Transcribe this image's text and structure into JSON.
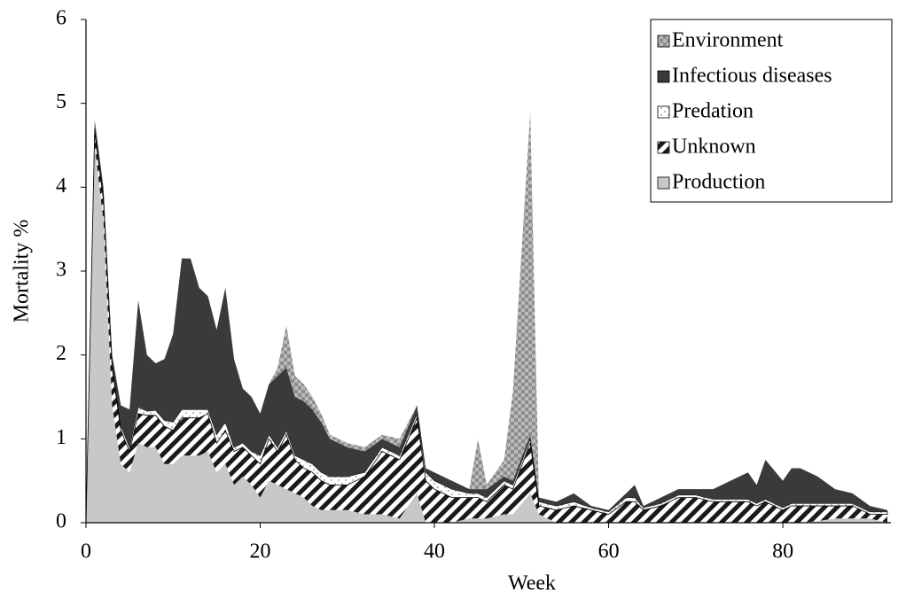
{
  "chart_data": {
    "type": "stacked-area",
    "x_label": "Week",
    "y_label": "Mortality %",
    "x": [
      0,
      1,
      2,
      3,
      4,
      5,
      6,
      7,
      8,
      9,
      10,
      11,
      12,
      13,
      14,
      15,
      16,
      17,
      18,
      19,
      20,
      21,
      22,
      23,
      24,
      25,
      26,
      27,
      28,
      30,
      32,
      34,
      36,
      38,
      39,
      40,
      42,
      44,
      45,
      46,
      48,
      49,
      51,
      52,
      54,
      56,
      58,
      60,
      62,
      63,
      64,
      66,
      68,
      70,
      72,
      74,
      76,
      77,
      78,
      80,
      81,
      82,
      84,
      86,
      88,
      90,
      92
    ],
    "series": [
      {
        "name": "Production",
        "color": "#c8c8c8",
        "values": [
          0,
          4.5,
          3.6,
          1.4,
          0.7,
          0.6,
          0.95,
          0.9,
          0.9,
          0.7,
          0.7,
          0.8,
          0.8,
          0.8,
          0.85,
          0.6,
          0.7,
          0.45,
          0.55,
          0.45,
          0.3,
          0.5,
          0.45,
          0.4,
          0.35,
          0.3,
          0.2,
          0.15,
          0.15,
          0.15,
          0.1,
          0.1,
          0.05,
          0.35,
          0,
          0,
          0,
          0.05,
          0.05,
          0.05,
          0.1,
          0.1,
          0.35,
          0.1,
          0,
          0,
          0,
          0,
          0,
          0,
          0,
          0,
          0,
          0,
          0,
          0,
          0,
          0,
          0,
          0,
          0,
          0,
          0.02,
          0.05,
          0.05,
          0.05,
          0
        ]
      },
      {
        "name": "Unknown",
        "color": "#1a1a1a",
        "values": [
          0,
          0.15,
          0.25,
          0.45,
          0.4,
          0.25,
          0.35,
          0.38,
          0.38,
          0.45,
          0.4,
          0.45,
          0.45,
          0.45,
          0.45,
          0.35,
          0.4,
          0.4,
          0.35,
          0.35,
          0.4,
          0.5,
          0.4,
          0.65,
          0.4,
          0.35,
          0.4,
          0.35,
          0.3,
          0.3,
          0.45,
          0.75,
          0.7,
          0.9,
          0.5,
          0.4,
          0.3,
          0.25,
          0.25,
          0.2,
          0.35,
          0.3,
          0.6,
          0.1,
          0.15,
          0.2,
          0.15,
          0.1,
          0.25,
          0.25,
          0.15,
          0.2,
          0.3,
          0.3,
          0.25,
          0.25,
          0.25,
          0.2,
          0.25,
          0.15,
          0.2,
          0.2,
          0.18,
          0.15,
          0.15,
          0.05,
          0.1
        ]
      },
      {
        "name": "Predation",
        "color": "#ffffff",
        "values": [
          0,
          0.05,
          0.05,
          0.05,
          0.05,
          0.05,
          0.08,
          0.05,
          0.06,
          0.07,
          0.1,
          0.1,
          0.1,
          0.1,
          0.05,
          0.1,
          0.1,
          0.05,
          0.05,
          0.05,
          0.1,
          0.05,
          0.05,
          0.05,
          0.05,
          0.1,
          0.1,
          0.1,
          0.1,
          0.1,
          0.05,
          0.05,
          0.05,
          0.05,
          0.1,
          0.1,
          0.1,
          0.05,
          0.05,
          0.05,
          0.05,
          0.05,
          0.05,
          0.05,
          0.05,
          0.05,
          0.03,
          0.03,
          0.05,
          0.05,
          0.03,
          0.03,
          0.03,
          0.03,
          0.03,
          0.03,
          0.03,
          0.03,
          0.03,
          0.03,
          0.03,
          0.03,
          0.03,
          0.03,
          0.03,
          0.03,
          0.03
        ]
      },
      {
        "name": "Infectious diseases",
        "color": "#3a3a3a",
        "values": [
          0,
          0.1,
          0.1,
          0.1,
          0.25,
          0.45,
          1.27,
          0.67,
          0.56,
          0.73,
          1.05,
          1.8,
          1.8,
          1.45,
          1.35,
          1.25,
          1.6,
          1.05,
          0.65,
          0.65,
          0.5,
          0.6,
          0.85,
          0.75,
          0.7,
          0.7,
          0.65,
          0.6,
          0.45,
          0.35,
          0.25,
          0.1,
          0.1,
          0.1,
          0.05,
          0.1,
          0.1,
          0.05,
          0.05,
          0.1,
          0.05,
          0.05,
          0.05,
          0.05,
          0.05,
          0.1,
          0.02,
          0.02,
          0.05,
          0.15,
          0.02,
          0.07,
          0.07,
          0.07,
          0.12,
          0.22,
          0.32,
          0.22,
          0.47,
          0.32,
          0.42,
          0.42,
          0.32,
          0.17,
          0.12,
          0.07,
          0.02
        ]
      },
      {
        "name": "Environment",
        "color": "#8c8c8c",
        "values": [
          0,
          0,
          0,
          0,
          0,
          0,
          0,
          0,
          0,
          0,
          0,
          0,
          0,
          0,
          0,
          0,
          0,
          0,
          0,
          0,
          0,
          0,
          0.1,
          0.5,
          0.25,
          0.2,
          0.15,
          0.1,
          0.05,
          0.05,
          0.05,
          0.05,
          0.1,
          0,
          0,
          0,
          0,
          0,
          0.6,
          0.05,
          0.2,
          1.05,
          3.85,
          0,
          0,
          0,
          0,
          0,
          0,
          0,
          0,
          0,
          0,
          0,
          0,
          0,
          0,
          0,
          0,
          0,
          0,
          0,
          0,
          0,
          0,
          0,
          0
        ]
      }
    ],
    "xlim": [
      0,
      92
    ],
    "ylim": [
      0,
      6
    ],
    "xticks": [
      0,
      20,
      40,
      60,
      80
    ],
    "yticks": [
      0,
      1,
      2,
      3,
      4,
      5,
      6
    ],
    "legend": "top-right"
  }
}
